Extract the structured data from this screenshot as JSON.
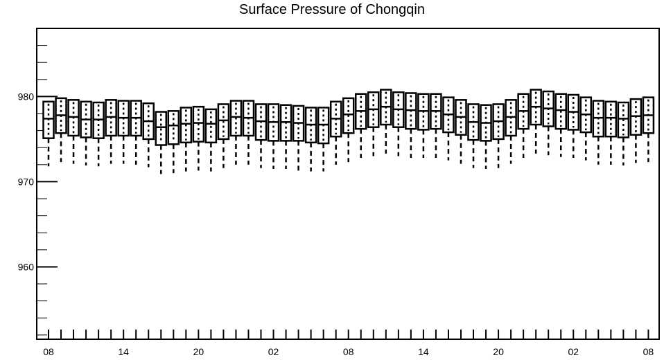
{
  "chart_data": {
    "type": "box",
    "title": "Surface Pressure of Chongqin",
    "xlabel": "",
    "ylabel": "",
    "ylim": [
      951.5,
      988
    ],
    "y_ticks": [
      960,
      970,
      980
    ],
    "x_tick_labels": [
      "08",
      "14",
      "20",
      "02",
      "08",
      "14",
      "20",
      "02",
      "08"
    ],
    "x_tick_hours": [
      0,
      6,
      12,
      18,
      24,
      30,
      36,
      42,
      48
    ],
    "grid": false,
    "legend": "none",
    "colors": {
      "box": "#000000",
      "background": "#ffffff"
    },
    "boxes": [
      {
        "hour": 0,
        "whisker_low": 971.8,
        "q1": 975.1,
        "median": 977.4,
        "q3": 979.4,
        "whisker_high": 979.4
      },
      {
        "hour": 1,
        "whisker_low": 972.3,
        "q1": 975.7,
        "median": 977.8,
        "q3": 979.8,
        "whisker_high": 979.8
      },
      {
        "hour": 2,
        "whisker_low": 972.1,
        "q1": 975.4,
        "median": 977.6,
        "q3": 979.6,
        "whisker_high": 979.6
      },
      {
        "hour": 3,
        "whisker_low": 971.9,
        "q1": 975.2,
        "median": 977.3,
        "q3": 979.4,
        "whisker_high": 979.4
      },
      {
        "hour": 4,
        "whisker_low": 971.8,
        "q1": 975.1,
        "median": 977.3,
        "q3": 979.3,
        "whisker_high": 979.3
      },
      {
        "hour": 5,
        "whisker_low": 972.1,
        "q1": 975.4,
        "median": 977.6,
        "q3": 979.6,
        "whisker_high": 979.6
      },
      {
        "hour": 6,
        "whisker_low": 972.1,
        "q1": 975.4,
        "median": 977.5,
        "q3": 979.5,
        "whisker_high": 979.5
      },
      {
        "hour": 7,
        "whisker_low": 972.0,
        "q1": 975.4,
        "median": 977.5,
        "q3": 979.5,
        "whisker_high": 979.5
      },
      {
        "hour": 8,
        "whisker_low": 971.7,
        "q1": 975.0,
        "median": 977.1,
        "q3": 979.2,
        "whisker_high": 979.2
      },
      {
        "hour": 9,
        "whisker_low": 970.9,
        "q1": 974.3,
        "median": 976.4,
        "q3": 978.2,
        "whisker_high": 978.2
      },
      {
        "hour": 10,
        "whisker_low": 971.0,
        "q1": 974.4,
        "median": 976.6,
        "q3": 978.3,
        "whisker_high": 978.3
      },
      {
        "hour": 11,
        "whisker_low": 971.2,
        "q1": 974.6,
        "median": 976.8,
        "q3": 978.7,
        "whisker_high": 978.7
      },
      {
        "hour": 12,
        "whisker_low": 971.3,
        "q1": 974.7,
        "median": 976.9,
        "q3": 978.8,
        "whisker_high": 978.8
      },
      {
        "hour": 13,
        "whisker_low": 971.2,
        "q1": 974.6,
        "median": 976.8,
        "q3": 978.5,
        "whisker_high": 978.5
      },
      {
        "hour": 14,
        "whisker_low": 971.6,
        "q1": 975.0,
        "median": 977.2,
        "q3": 979.1,
        "whisker_high": 979.1
      },
      {
        "hour": 15,
        "whisker_low": 972.0,
        "q1": 975.4,
        "median": 977.6,
        "q3": 979.5,
        "whisker_high": 979.5
      },
      {
        "hour": 16,
        "whisker_low": 972.0,
        "q1": 975.4,
        "median": 977.5,
        "q3": 979.5,
        "whisker_high": 979.5
      },
      {
        "hour": 17,
        "whisker_low": 971.6,
        "q1": 974.9,
        "median": 977.1,
        "q3": 979.1,
        "whisker_high": 979.1
      },
      {
        "hour": 18,
        "whisker_low": 971.5,
        "q1": 974.8,
        "median": 977.0,
        "q3": 979.1,
        "whisker_high": 979.1
      },
      {
        "hour": 19,
        "whisker_low": 971.5,
        "q1": 974.8,
        "median": 977.0,
        "q3": 979.0,
        "whisker_high": 979.0
      },
      {
        "hour": 20,
        "whisker_low": 971.3,
        "q1": 974.8,
        "median": 976.9,
        "q3": 978.9,
        "whisker_high": 978.9
      },
      {
        "hour": 21,
        "whisker_low": 971.2,
        "q1": 974.6,
        "median": 976.7,
        "q3": 978.7,
        "whisker_high": 978.7
      },
      {
        "hour": 22,
        "whisker_low": 971.2,
        "q1": 974.5,
        "median": 976.7,
        "q3": 978.7,
        "whisker_high": 978.7
      },
      {
        "hour": 23,
        "whisker_low": 972.0,
        "q1": 975.3,
        "median": 977.4,
        "q3": 979.4,
        "whisker_high": 979.4
      },
      {
        "hour": 24,
        "whisker_low": 972.3,
        "q1": 975.7,
        "median": 977.9,
        "q3": 979.8,
        "whisker_high": 979.8
      },
      {
        "hour": 25,
        "whisker_low": 972.8,
        "q1": 976.2,
        "median": 978.3,
        "q3": 980.3,
        "whisker_high": 980.3
      },
      {
        "hour": 26,
        "whisker_low": 973.0,
        "q1": 976.4,
        "median": 978.5,
        "q3": 980.5,
        "whisker_high": 980.5
      },
      {
        "hour": 27,
        "whisker_low": 973.3,
        "q1": 976.7,
        "median": 978.8,
        "q3": 980.8,
        "whisker_high": 980.8
      },
      {
        "hour": 28,
        "whisker_low": 973.0,
        "q1": 976.4,
        "median": 978.5,
        "q3": 980.5,
        "whisker_high": 980.5
      },
      {
        "hour": 29,
        "whisker_low": 972.8,
        "q1": 976.2,
        "median": 978.4,
        "q3": 980.4,
        "whisker_high": 980.4
      },
      {
        "hour": 30,
        "whisker_low": 972.8,
        "q1": 976.1,
        "median": 978.3,
        "q3": 980.3,
        "whisker_high": 980.3
      },
      {
        "hour": 31,
        "whisker_low": 972.8,
        "q1": 976.2,
        "median": 978.3,
        "q3": 980.3,
        "whisker_high": 980.3
      },
      {
        "hour": 32,
        "whisker_low": 972.5,
        "q1": 975.8,
        "median": 977.9,
        "q3": 979.9,
        "whisker_high": 979.9
      },
      {
        "hour": 33,
        "whisker_low": 972.1,
        "q1": 975.5,
        "median": 977.6,
        "q3": 979.6,
        "whisker_high": 979.6
      },
      {
        "hour": 34,
        "whisker_low": 971.6,
        "q1": 974.9,
        "median": 977.0,
        "q3": 979.1,
        "whisker_high": 979.1
      },
      {
        "hour": 35,
        "whisker_low": 971.5,
        "q1": 974.8,
        "median": 976.9,
        "q3": 979.0,
        "whisker_high": 979.0
      },
      {
        "hour": 36,
        "whisker_low": 971.6,
        "q1": 975.0,
        "median": 977.1,
        "q3": 979.1,
        "whisker_high": 979.1
      },
      {
        "hour": 37,
        "whisker_low": 972.1,
        "q1": 975.4,
        "median": 977.6,
        "q3": 979.6,
        "whisker_high": 979.6
      },
      {
        "hour": 38,
        "whisker_low": 972.8,
        "q1": 976.2,
        "median": 978.3,
        "q3": 980.3,
        "whisker_high": 980.3
      },
      {
        "hour": 39,
        "whisker_low": 973.3,
        "q1": 976.7,
        "median": 978.8,
        "q3": 980.8,
        "whisker_high": 980.8
      },
      {
        "hour": 40,
        "whisker_low": 973.1,
        "q1": 976.5,
        "median": 978.6,
        "q3": 980.6,
        "whisker_high": 980.6
      },
      {
        "hour": 41,
        "whisker_low": 972.9,
        "q1": 976.2,
        "median": 978.4,
        "q3": 980.3,
        "whisker_high": 980.3
      },
      {
        "hour": 42,
        "whisker_low": 972.8,
        "q1": 976.1,
        "median": 978.2,
        "q3": 980.2,
        "whisker_high": 980.2
      },
      {
        "hour": 43,
        "whisker_low": 972.5,
        "q1": 975.8,
        "median": 977.9,
        "q3": 979.9,
        "whisker_high": 979.9
      },
      {
        "hour": 44,
        "whisker_low": 972.0,
        "q1": 975.3,
        "median": 977.5,
        "q3": 979.5,
        "whisker_high": 979.5
      },
      {
        "hour": 45,
        "whisker_low": 972.0,
        "q1": 975.3,
        "median": 977.5,
        "q3": 979.4,
        "whisker_high": 979.4
      },
      {
        "hour": 46,
        "whisker_low": 971.9,
        "q1": 975.2,
        "median": 977.4,
        "q3": 979.3,
        "whisker_high": 979.3
      },
      {
        "hour": 47,
        "whisker_low": 972.2,
        "q1": 975.5,
        "median": 977.7,
        "q3": 979.7,
        "whisker_high": 979.7
      },
      {
        "hour": 48,
        "whisker_low": 972.3,
        "q1": 975.7,
        "median": 977.8,
        "q3": 979.9,
        "whisker_high": 979.9
      }
    ]
  }
}
